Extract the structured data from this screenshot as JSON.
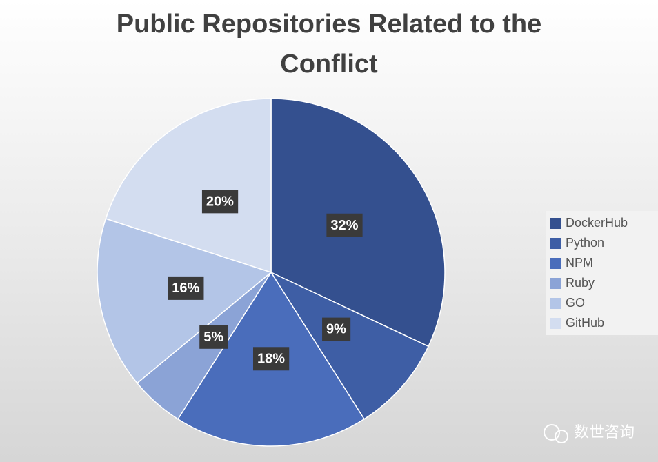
{
  "chart_data": {
    "type": "pie",
    "title": "Public Repositories Related to the Conflict",
    "categories": [
      "DockerHub",
      "Python",
      "NPM",
      "Ruby",
      "GO",
      "GitHub"
    ],
    "values": [
      32,
      9,
      18,
      5,
      16,
      20
    ],
    "value_labels": [
      "32%",
      "9%",
      "18%",
      "5%",
      "16%",
      "20%"
    ],
    "colors": [
      "#34508f",
      "#3e5ea5",
      "#4a6dbb",
      "#8ba3d6",
      "#b3c5e7",
      "#d3ddf0"
    ],
    "legend": "right"
  },
  "watermark": "数世咨询"
}
